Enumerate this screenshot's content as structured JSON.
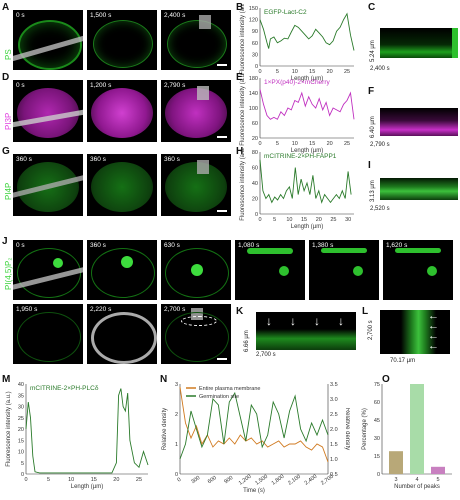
{
  "panels": {
    "A": {
      "label": "A",
      "side": "PS",
      "times": [
        "0 s",
        "1,500 s",
        "2,400 s"
      ],
      "color": "#3cd43c"
    },
    "B": {
      "label": "B",
      "title": "EGFP-Lact-C2",
      "ylabel": "Fluorescence intensity (a.u.)",
      "xlabel": "Length (µm)",
      "xticks": [
        "0",
        "5",
        "10",
        "15",
        "20",
        "25"
      ],
      "yticks": [
        "0",
        "30",
        "60",
        "90",
        "120",
        "150"
      ]
    },
    "C": {
      "label": "C",
      "dim": "5.24 µm",
      "time": "2,400 s"
    },
    "D": {
      "label": "D",
      "side": "PI3P",
      "times": [
        "0 s",
        "1,200 s",
        "2,790 s"
      ],
      "color": "#e040e0"
    },
    "E": {
      "label": "E",
      "title": "1×PX(p40)-2×mCherry",
      "ylabel": "Fluorescence intensity (a.u.)",
      "xlabel": "Length (µm)",
      "xticks": [
        "0",
        "5",
        "10",
        "15",
        "20",
        "25"
      ],
      "yticks": [
        "20",
        "60",
        "100",
        "140",
        "180"
      ]
    },
    "F": {
      "label": "F",
      "dim": "6.40 µm",
      "time": "2,790 s"
    },
    "G": {
      "label": "G",
      "side": "PI4P",
      "times": [
        "360 s",
        "360 s",
        "360 s"
      ]
    },
    "H": {
      "label": "H",
      "title": "mCITRINE-2×PH-FAPP1",
      "ylabel": "Fluorescence intensity (a.u.)",
      "xlabel": "Length (µm)",
      "xticks": [
        "0",
        "5",
        "10",
        "15",
        "20",
        "25",
        "30"
      ],
      "yticks": [
        "0",
        "20",
        "40",
        "60",
        "80"
      ]
    },
    "I": {
      "label": "I",
      "dim": "3.13 µm",
      "time": "2,520 s"
    },
    "J": {
      "label": "J",
      "side": "PI(4,5)P₂",
      "times_row1": [
        "0 s",
        "360 s",
        "630 s",
        "1,080 s",
        "1,380 s",
        "1,620 s"
      ],
      "times_row2": [
        "1,950 s",
        "2,220 s",
        "2,700 s"
      ]
    },
    "K": {
      "label": "K",
      "dim": "6.66 µm",
      "time": "2,700 s"
    },
    "L": {
      "label": "L",
      "dim_time": "2,700 s",
      "dim_len": "70.17 µm"
    },
    "M": {
      "label": "M",
      "title": "mCITRINE-2×PH-PLCδ",
      "ylabel": "Fluorescence intensity (a.u.)",
      "xlabel": "Length (µm)",
      "xticks": [
        "0",
        "5",
        "10",
        "15",
        "20",
        "25"
      ],
      "yticks": [
        "0",
        "5",
        "10",
        "15",
        "20",
        "25",
        "30",
        "35",
        "40"
      ]
    },
    "N": {
      "label": "N",
      "legend": [
        "Entire plasma membrane",
        "Germination site"
      ],
      "ylabel_left": "Relative density",
      "ylabel_right": "Relative density",
      "xlabel": "Time (s)",
      "xticks": [
        "0",
        "300",
        "600",
        "900",
        "1,200",
        "1,500",
        "1,800",
        "2,100",
        "2,400",
        "2,700"
      ],
      "yticks_left": [
        "0",
        "1",
        "2",
        "3"
      ],
      "yticks_right": [
        "0.5",
        "1.0",
        "1.5",
        "2.0",
        "2.5",
        "3.0",
        "3.5"
      ]
    },
    "O": {
      "label": "O",
      "ylabel": "Percentage (%)",
      "xlabel": "Number of peaks",
      "xticks": [
        "3",
        "4",
        "5"
      ],
      "yticks": [
        "0",
        "15",
        "30",
        "45",
        "60",
        "75"
      ]
    }
  },
  "chart_data": [
    {
      "type": "line",
      "panel": "B",
      "title": "EGFP-Lact-C2",
      "xlabel": "Length (µm)",
      "ylabel": "Fluorescence intensity (a.u.)",
      "xlim": [
        0,
        27
      ],
      "ylim": [
        0,
        150
      ],
      "x": [
        0,
        1,
        2,
        2.5,
        3,
        4,
        5,
        6,
        7,
        8,
        9,
        10,
        11,
        12,
        13,
        14,
        15,
        16,
        17,
        18,
        19,
        20,
        21,
        22,
        23,
        24,
        25,
        26,
        27
      ],
      "y": [
        120,
        95,
        60,
        45,
        70,
        75,
        60,
        65,
        72,
        70,
        88,
        105,
        100,
        90,
        80,
        70,
        78,
        95,
        85,
        75,
        60,
        55,
        65,
        90,
        100,
        120,
        135,
        80,
        40
      ],
      "color": "#2a7a2a"
    },
    {
      "type": "line",
      "panel": "E",
      "title": "1×PX(p40)-2×mCherry",
      "xlabel": "Length (µm)",
      "ylabel": "Fluorescence intensity (a.u.)",
      "xlim": [
        0,
        27
      ],
      "ylim": [
        20,
        180
      ],
      "x": [
        0,
        1,
        2,
        3,
        4,
        5,
        6,
        7,
        8,
        9,
        10,
        11,
        12,
        13,
        14,
        15,
        16,
        17,
        18,
        19,
        20,
        21,
        22,
        23,
        24,
        25,
        26,
        27
      ],
      "y": [
        150,
        110,
        80,
        70,
        75,
        70,
        90,
        80,
        100,
        95,
        120,
        115,
        140,
        105,
        130,
        110,
        100,
        125,
        95,
        115,
        80,
        100,
        95,
        90,
        110,
        120,
        140,
        70
      ],
      "color": "#c030c0"
    },
    {
      "type": "line",
      "panel": "H",
      "title": "mCITRINE-2×PH-FAPP1",
      "xlabel": "Length (µm)",
      "ylabel": "Fluorescence intensity (a.u.)",
      "xlim": [
        0,
        32
      ],
      "ylim": [
        0,
        80
      ],
      "x": [
        0,
        1,
        2,
        3,
        4,
        5,
        6,
        7,
        8,
        9,
        10,
        11,
        12,
        13,
        14,
        15,
        16,
        17,
        18,
        19,
        20,
        21,
        22,
        23,
        24,
        25,
        26,
        27,
        28,
        29,
        30,
        31
      ],
      "y": [
        70,
        30,
        20,
        25,
        15,
        22,
        18,
        25,
        20,
        30,
        35,
        20,
        60,
        25,
        45,
        30,
        40,
        25,
        50,
        20,
        30,
        15,
        25,
        20,
        15,
        20,
        25,
        20,
        30,
        20,
        55,
        25
      ],
      "color": "#2a7a2a"
    },
    {
      "type": "line",
      "panel": "M",
      "title": "mCITRINE-2×PH-PLCδ",
      "xlabel": "Length (µm)",
      "ylabel": "Fluorescence intensity (a.u.)",
      "xlim": [
        0,
        27
      ],
      "ylim": [
        0,
        40
      ],
      "x": [
        0,
        0.5,
        1,
        1.5,
        2,
        3,
        5,
        8,
        10,
        13,
        15,
        18,
        19,
        20,
        20.5,
        21,
        21.5,
        22,
        22.5,
        23,
        24,
        25,
        26,
        27
      ],
      "y": [
        20,
        32,
        25,
        8,
        1,
        0.5,
        0.5,
        0.5,
        0.5,
        0.5,
        0.5,
        0.5,
        0.5,
        5,
        35,
        38,
        30,
        28,
        36,
        15,
        5,
        3,
        10,
        4
      ],
      "color": "#2a7a2a"
    },
    {
      "type": "line",
      "panel": "N",
      "xlabel": "Time (s)",
      "ylim": [
        0,
        3
      ],
      "xlim": [
        0,
        2700
      ],
      "series": [
        {
          "name": "Entire plasma membrane",
          "axis": "left",
          "color": "#d07a20",
          "x": [
            0,
            100,
            200,
            300,
            400,
            500,
            600,
            700,
            800,
            900,
            1000,
            1100,
            1200,
            1300,
            1400,
            1500,
            1600,
            1700,
            1800,
            1900,
            2000,
            2100,
            2200,
            2300,
            2400,
            2500,
            2600,
            2700
          ],
          "y": [
            2.9,
            1.7,
            1.2,
            1.6,
            1.0,
            1.3,
            0.9,
            1.1,
            1.0,
            1.2,
            1.0,
            1.3,
            1.1,
            1.2,
            1.0,
            1.1,
            0.9,
            1.0,
            1.1,
            0.9,
            1.0,
            1.0,
            1.1,
            0.9,
            0.8,
            1.0,
            0.9,
            0.4
          ]
        },
        {
          "name": "Germination site",
          "axis": "right",
          "color": "#2a7a2a",
          "x": [
            0,
            100,
            200,
            300,
            400,
            500,
            600,
            700,
            800,
            900,
            1000,
            1100,
            1200,
            1300,
            1400,
            1500,
            1600,
            1700,
            1800,
            1900,
            2000,
            2100,
            2200,
            2300,
            2400,
            2500,
            2600,
            2700
          ],
          "y": [
            1.0,
            1.5,
            2.6,
            2.0,
            1.4,
            1.8,
            3.0,
            2.8,
            1.5,
            2.9,
            3.2,
            2.4,
            1.6,
            2.8,
            2.5,
            1.4,
            1.8,
            2.9,
            2.5,
            1.7,
            2.6,
            3.1,
            2.0,
            1.6,
            2.2,
            1.8,
            2.3,
            1.8
          ]
        }
      ]
    },
    {
      "type": "bar",
      "panel": "O",
      "xlabel": "Number of peaks",
      "ylabel": "Percentage (%)",
      "ylim": [
        0,
        75
      ],
      "categories": [
        "3",
        "4",
        "5"
      ],
      "values": [
        19,
        75,
        6
      ],
      "colors": [
        "#b8a878",
        "#a8dca8",
        "#c880c0"
      ]
    }
  ]
}
